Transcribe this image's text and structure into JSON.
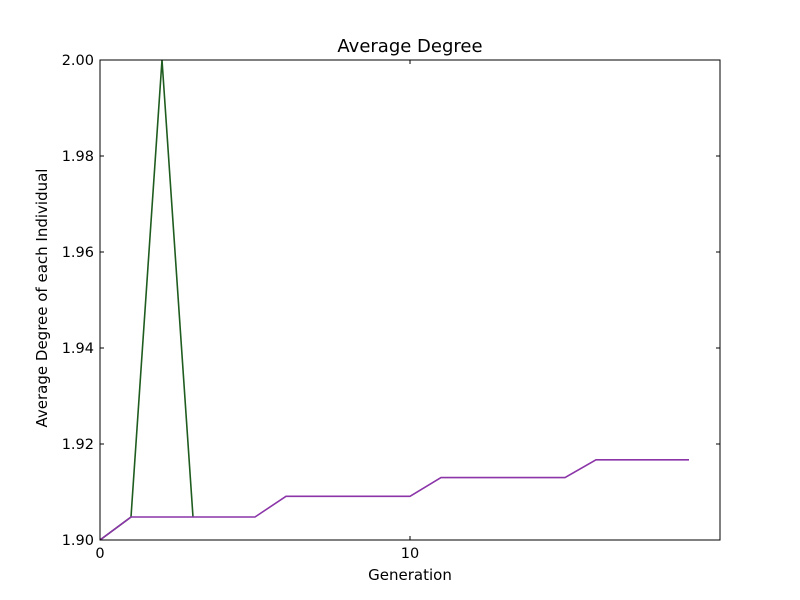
{
  "chart_data": {
    "type": "line",
    "title": "Average Degree",
    "xlabel": "Generation",
    "ylabel": "Average Degree of each Individual",
    "xlim": [
      0,
      20
    ],
    "ylim": [
      1.9,
      2.0
    ],
    "x_ticks": [
      0,
      10
    ],
    "y_ticks": [
      1.9,
      1.92,
      1.94,
      1.96,
      1.98,
      2.0
    ],
    "x_tick_labels": [
      "0",
      "10"
    ],
    "y_tick_labels": [
      "1.90",
      "1.92",
      "1.94",
      "1.96",
      "1.98",
      "2.00"
    ],
    "grid": false,
    "series": [
      {
        "color": "#1f5c1f",
        "x": [
          0,
          1,
          2,
          3
        ],
        "y": [
          1.9,
          1.9048,
          2.0,
          1.9048
        ]
      },
      {
        "color": "#8b35a8",
        "x": [
          0,
          1,
          2,
          3,
          4,
          5,
          6,
          7,
          8,
          9,
          10,
          11,
          12,
          13,
          14,
          15,
          16,
          17,
          18,
          19
        ],
        "y": [
          1.9,
          1.9048,
          1.9048,
          1.9048,
          1.9048,
          1.9048,
          1.9091,
          1.9091,
          1.9091,
          1.9091,
          1.9091,
          1.913,
          1.913,
          1.913,
          1.913,
          1.913,
          1.9167,
          1.9167,
          1.9167,
          1.9167
        ]
      }
    ]
  }
}
